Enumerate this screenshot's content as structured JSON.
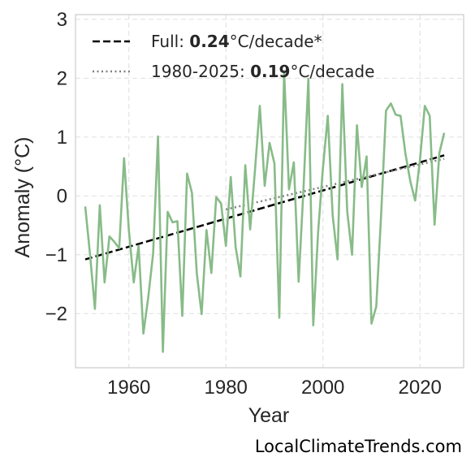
{
  "chart_data": {
    "type": "line",
    "xlabel": "Year",
    "ylabel": "Anomaly (°C)",
    "xlim": [
      1949,
      2029
    ],
    "ylim": [
      -2.92,
      3.08
    ],
    "xticks": [
      1960,
      1980,
      2000,
      2020
    ],
    "yticks": [
      -2,
      -1,
      0,
      1,
      2,
      3
    ],
    "ytick_labels": [
      "−2",
      "−1",
      "0",
      "1",
      "2",
      "3"
    ],
    "grid": true,
    "legend_position": "top-left",
    "colors": {
      "series": "#88bb88",
      "full_trend": "#000000",
      "recent_trend": "#808080"
    },
    "series": [
      {
        "x": [
          1951,
          1952,
          1953,
          1954,
          1955,
          1956,
          1957,
          1958,
          1959,
          1960,
          1961,
          1962,
          1963,
          1964,
          1965,
          1966,
          1967,
          1968,
          1969,
          1970,
          1971,
          1972,
          1973,
          1974,
          1975,
          1976,
          1977,
          1978,
          1979,
          1980,
          1981,
          1982,
          1983,
          1984,
          1985,
          1986,
          1987,
          1988,
          1989,
          1990,
          1991,
          1992,
          1993,
          1994,
          1995,
          1996,
          1997,
          1998,
          1999,
          2000,
          2001,
          2002,
          2003,
          2004,
          2005,
          2006,
          2007,
          2008,
          2009,
          2010,
          2011,
          2012,
          2013,
          2014,
          2015,
          2016,
          2017,
          2018,
          2019,
          2020,
          2021,
          2022,
          2023,
          2024,
          2025
        ],
        "y": [
          -0.18,
          -1.0,
          -1.92,
          -0.16,
          -1.47,
          -0.69,
          -0.78,
          -0.89,
          0.64,
          -0.58,
          -1.47,
          -0.85,
          -2.34,
          -1.72,
          -0.98,
          1.01,
          -2.65,
          -0.27,
          -0.45,
          -0.43,
          -2.04,
          0.38,
          0.05,
          -1.32,
          -2.01,
          -0.58,
          -1.31,
          -0.02,
          -0.13,
          -0.85,
          0.32,
          -0.87,
          -1.37,
          0.52,
          -0.57,
          0.45,
          1.53,
          0.17,
          0.9,
          0.55,
          -2.07,
          2.12,
          0.11,
          0.57,
          -1.46,
          0.13,
          1.99,
          -2.2,
          -0.61,
          0.47,
          1.36,
          -0.33,
          -1.08,
          1.9,
          -0.26,
          -1.0,
          1.2,
          0.15,
          0.67,
          -2.17,
          -1.88,
          -0.32,
          1.45,
          1.57,
          1.38,
          1.36,
          0.72,
          0.25,
          -0.08,
          0.61,
          1.53,
          1.36,
          -0.49,
          0.73,
          1.07
        ]
      }
    ],
    "trends": [
      {
        "x": [
          1951,
          2025
        ],
        "y": [
          -1.08,
          0.69
        ]
      },
      {
        "x": [
          1980,
          2025
        ],
        "y": [
          -0.23,
          0.63
        ]
      }
    ],
    "legend": [
      {
        "prefix": "Full: ",
        "value": "0.24",
        "suffix": "°C/decade*"
      },
      {
        "prefix": "1980-2025: ",
        "value": "0.19",
        "suffix": "°C/decade"
      }
    ]
  },
  "credit": "LocalClimateTrends.com"
}
